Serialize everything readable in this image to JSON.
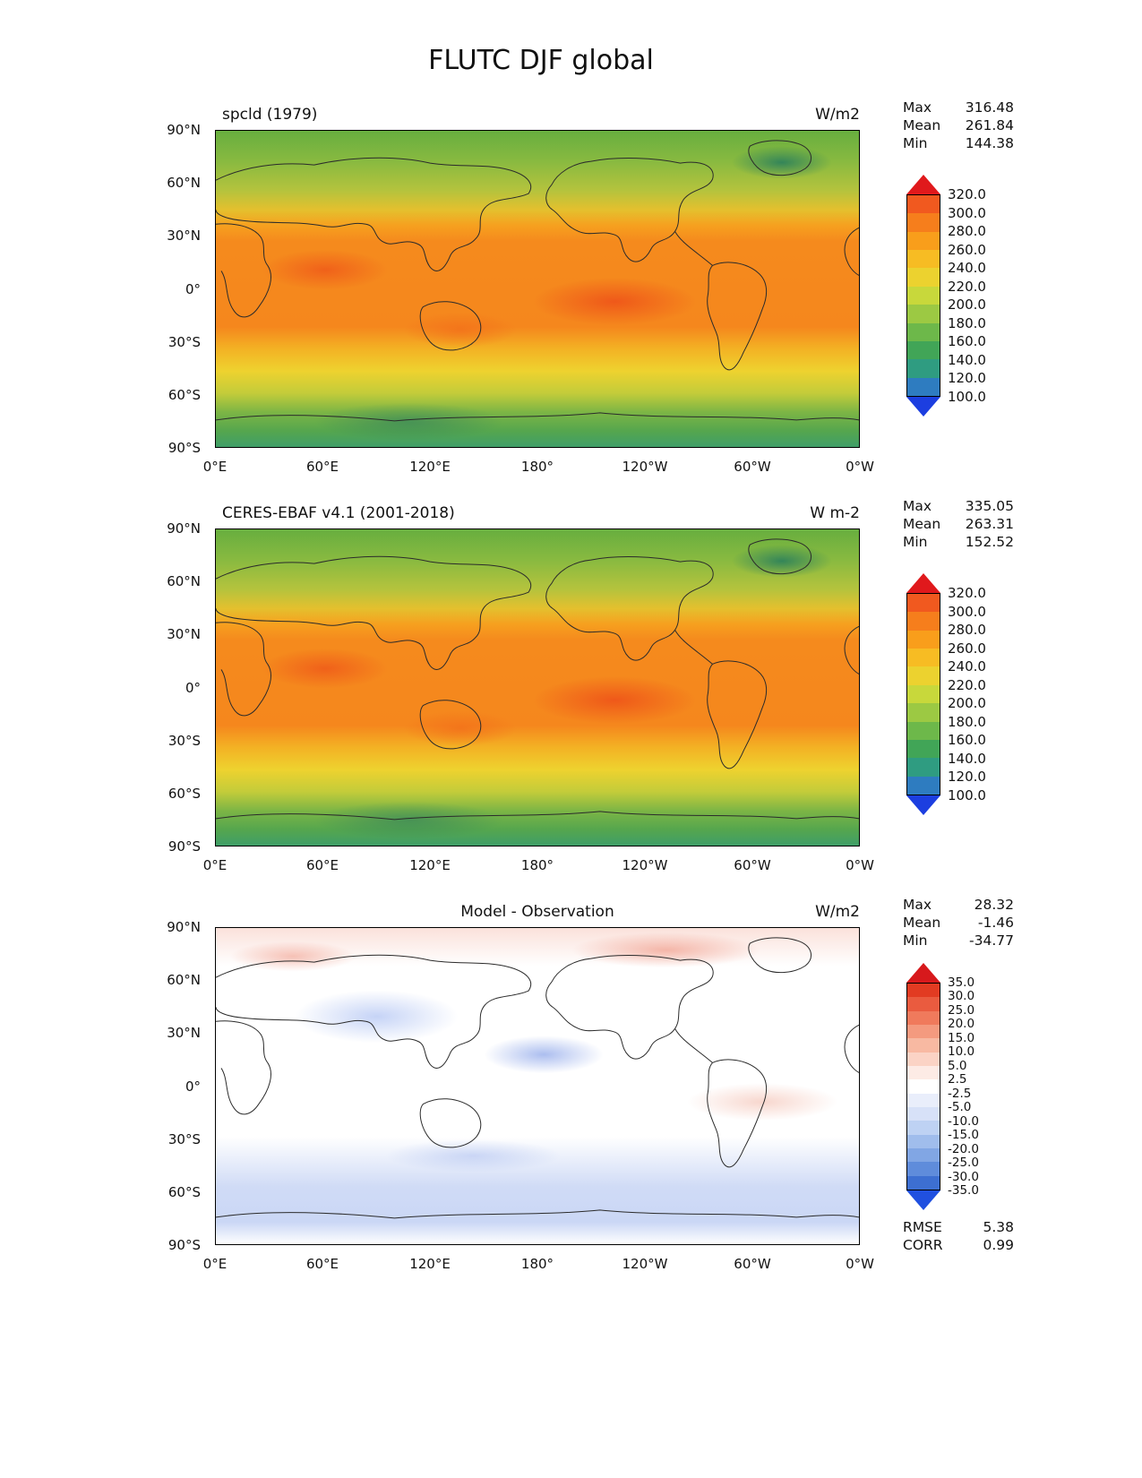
{
  "figure": {
    "title": "FLUTC DJF global"
  },
  "axes": {
    "lon_ticks": [
      "0°E",
      "60°E",
      "120°E",
      "180°",
      "120°W",
      "60°W",
      "0°W"
    ],
    "lat_ticks": [
      "90°N",
      "60°N",
      "30°N",
      "0°",
      "30°S",
      "60°S",
      "90°S"
    ]
  },
  "panels": [
    {
      "title": "spcld (1979)",
      "units": "W/m2",
      "stats": [
        {
          "label": "Max",
          "value": "316.48"
        },
        {
          "label": "Mean",
          "value": "261.84"
        },
        {
          "label": "Min",
          "value": "144.38"
        }
      ],
      "colorbar": {
        "labels": [
          "320.0",
          "300.0",
          "280.0",
          "260.0",
          "240.0",
          "220.0",
          "200.0",
          "180.0",
          "160.0",
          "140.0",
          "120.0",
          "100.0"
        ],
        "colors": [
          "#f1591f",
          "#f67e1c",
          "#f99e1b",
          "#f7bc23",
          "#ecd22f",
          "#c8d83b",
          "#9cc943",
          "#6db84a",
          "#41a557",
          "#2f9c81",
          "#2e7cc0"
        ],
        "arrow_top": "#e0191c",
        "arrow_bottom": "#1c3ee0"
      }
    },
    {
      "title": "CERES-EBAF v4.1 (2001-2018)",
      "units": "W m-2",
      "stats": [
        {
          "label": "Max",
          "value": "335.05"
        },
        {
          "label": "Mean",
          "value": "263.31"
        },
        {
          "label": "Min",
          "value": "152.52"
        }
      ],
      "colorbar": {
        "labels": [
          "320.0",
          "300.0",
          "280.0",
          "260.0",
          "240.0",
          "220.0",
          "200.0",
          "180.0",
          "160.0",
          "140.0",
          "120.0",
          "100.0"
        ],
        "colors": [
          "#f1591f",
          "#f67e1c",
          "#f99e1b",
          "#f7bc23",
          "#ecd22f",
          "#c8d83b",
          "#9cc943",
          "#6db84a",
          "#41a557",
          "#2f9c81",
          "#2e7cc0"
        ],
        "arrow_top": "#e0191c",
        "arrow_bottom": "#1c3ee0"
      }
    },
    {
      "title": "Model - Observation",
      "units": "W/m2",
      "stats": [
        {
          "label": "Max",
          "value": "28.32"
        },
        {
          "label": "Mean",
          "value": "-1.46"
        },
        {
          "label": "Min",
          "value": "-34.77"
        }
      ],
      "colorbar": {
        "labels": [
          "35.0",
          "30.0",
          "25.0",
          "20.0",
          "15.0",
          "10.0",
          "5.0",
          "2.5",
          "-2.5",
          "-5.0",
          "-10.0",
          "-15.0",
          "-20.0",
          "-25.0",
          "-30.0",
          "-35.0"
        ],
        "colors": [
          "#e23b22",
          "#ea5b3f",
          "#f07a5c",
          "#f49a7f",
          "#f8b9a2",
          "#fbd3c5",
          "#fdebe5",
          "#ffffff",
          "#e9eefb",
          "#d7e1f8",
          "#bed2f3",
          "#a0bdec",
          "#81a6e4",
          "#5f8cdb",
          "#3d6fd1"
        ],
        "arrow_top": "#d7191c",
        "arrow_bottom": "#2050e0"
      },
      "extra_stats": [
        {
          "label": "RMSE",
          "value": "5.38"
        },
        {
          "label": "CORR",
          "value": "0.99"
        }
      ]
    }
  ],
  "chart_data": [
    {
      "type": "heatmap",
      "title": "spcld (1979)",
      "units": "W/m2",
      "x_ticks": [
        "0°E",
        "60°E",
        "120°E",
        "180°",
        "120°W",
        "60°W",
        "0°W"
      ],
      "y_ticks": [
        "90°N",
        "60°N",
        "30°N",
        "0°",
        "30°S",
        "60°S",
        "90°S"
      ],
      "x_range_deg_east": [
        0,
        360
      ],
      "y_range_deg": [
        -90,
        90
      ],
      "stats": {
        "max": 316.48,
        "mean": 261.84,
        "min": 144.38
      },
      "colorbar_levels": [
        100,
        120,
        140,
        160,
        180,
        200,
        220,
        240,
        260,
        280,
        300,
        320
      ],
      "zonal_mean_estimate": {
        "lat": [
          90,
          75,
          60,
          45,
          30,
          15,
          0,
          -15,
          -30,
          -45,
          -60,
          -75,
          -90
        ],
        "value": [
          175,
          195,
          215,
          250,
          280,
          295,
          298,
          293,
          283,
          262,
          238,
          205,
          180
        ]
      }
    },
    {
      "type": "heatmap",
      "title": "CERES-EBAF v4.1 (2001-2018)",
      "units": "W m-2",
      "x_ticks": [
        "0°E",
        "60°E",
        "120°E",
        "180°",
        "120°W",
        "60°W",
        "0°W"
      ],
      "y_ticks": [
        "90°N",
        "60°N",
        "30°N",
        "0°",
        "30°S",
        "60°S",
        "90°S"
      ],
      "x_range_deg_east": [
        0,
        360
      ],
      "y_range_deg": [
        -90,
        90
      ],
      "stats": {
        "max": 335.05,
        "mean": 263.31,
        "min": 152.52
      },
      "colorbar_levels": [
        100,
        120,
        140,
        160,
        180,
        200,
        220,
        240,
        260,
        280,
        300,
        320
      ],
      "zonal_mean_estimate": {
        "lat": [
          90,
          75,
          60,
          45,
          30,
          15,
          0,
          -15,
          -30,
          -45,
          -60,
          -75,
          -90
        ],
        "value": [
          180,
          198,
          218,
          252,
          282,
          296,
          299,
          294,
          285,
          264,
          240,
          208,
          188
        ]
      }
    },
    {
      "type": "heatmap",
      "title": "Model - Observation",
      "units": "W/m2",
      "x_ticks": [
        "0°E",
        "60°E",
        "120°E",
        "180°",
        "120°W",
        "60°W",
        "0°W"
      ],
      "y_ticks": [
        "90°N",
        "60°N",
        "30°N",
        "0°",
        "30°S",
        "60°S",
        "90°S"
      ],
      "x_range_deg_east": [
        0,
        360
      ],
      "y_range_deg": [
        -90,
        90
      ],
      "stats": {
        "max": 28.32,
        "mean": -1.46,
        "min": -34.77
      },
      "rmse": 5.38,
      "corr": 0.99,
      "colorbar_levels": [
        -35,
        -30,
        -25,
        -20,
        -15,
        -10,
        -5,
        -2.5,
        2.5,
        5,
        10,
        15,
        20,
        25,
        30,
        35
      ],
      "zonal_mean_estimate": {
        "lat": [
          90,
          75,
          60,
          45,
          30,
          15,
          0,
          -15,
          -30,
          -45,
          -60,
          -75,
          -90
        ],
        "value": [
          3,
          -2,
          -4,
          -3,
          -4,
          -3,
          -2,
          -3,
          -4,
          -6,
          -7,
          -5,
          -8
        ]
      }
    }
  ]
}
